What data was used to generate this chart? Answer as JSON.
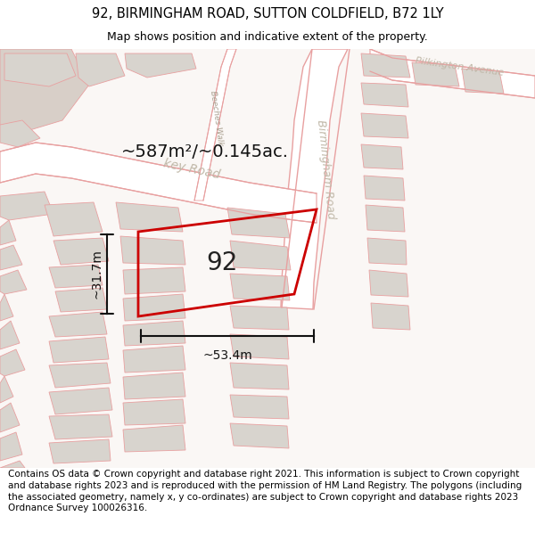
{
  "title_line1": "92, BIRMINGHAM ROAD, SUTTON COLDFIELD, B72 1LY",
  "title_line2": "Map shows position and indicative extent of the property.",
  "footer_text": "Contains OS data © Crown copyright and database right 2021. This information is subject to Crown copyright and database rights 2023 and is reproduced with the permission of HM Land Registry. The polygons (including the associated geometry, namely x, y co-ordinates) are subject to Crown copyright and database rights 2023 Ordnance Survey 100026316.",
  "area_label": "~587m²/~0.145ac.",
  "width_label": "~53.4m",
  "height_label": "~31.7m",
  "number_label": "92",
  "map_bg": "#ffffff",
  "road_line_color": "#e8a0a0",
  "building_fill": "#d8d4ce",
  "building_edge": "#e8a0a0",
  "dark_fill": "#c8bdb8",
  "highlight_edge": "#cc0000",
  "dim_color": "#111111",
  "title_fs": 10.5,
  "sub_fs": 9,
  "footer_fs": 7.5,
  "label_fs": 14,
  "num_fs": 20,
  "dim_fs": 10,
  "road_label_fs": 9,
  "small_road_fs": 7
}
